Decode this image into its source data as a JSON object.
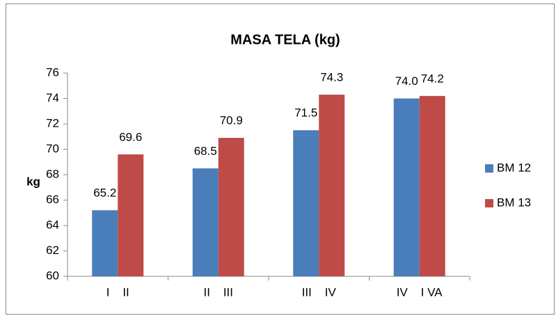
{
  "chart_data": {
    "type": "bar",
    "title": "MASA TELA (kg)",
    "y_label": "kg",
    "categories": [
      "I    II",
      "II    III",
      "III    IV",
      "IV    I VA"
    ],
    "series": [
      {
        "name": "BM 12",
        "color": "#4a7ebb",
        "values": [
          65.2,
          68.5,
          71.5,
          74.0
        ],
        "value_labels": [
          "65.2",
          "68.5",
          "71.5",
          "74.0"
        ]
      },
      {
        "name": "BM 13",
        "color": "#be4b48",
        "values": [
          69.6,
          70.9,
          74.3,
          74.2
        ]
      }
    ],
    "ylim": [
      60,
      76
    ],
    "yticks": [
      60,
      62,
      64,
      66,
      68,
      70,
      72,
      74,
      76
    ],
    "legend": "right"
  }
}
